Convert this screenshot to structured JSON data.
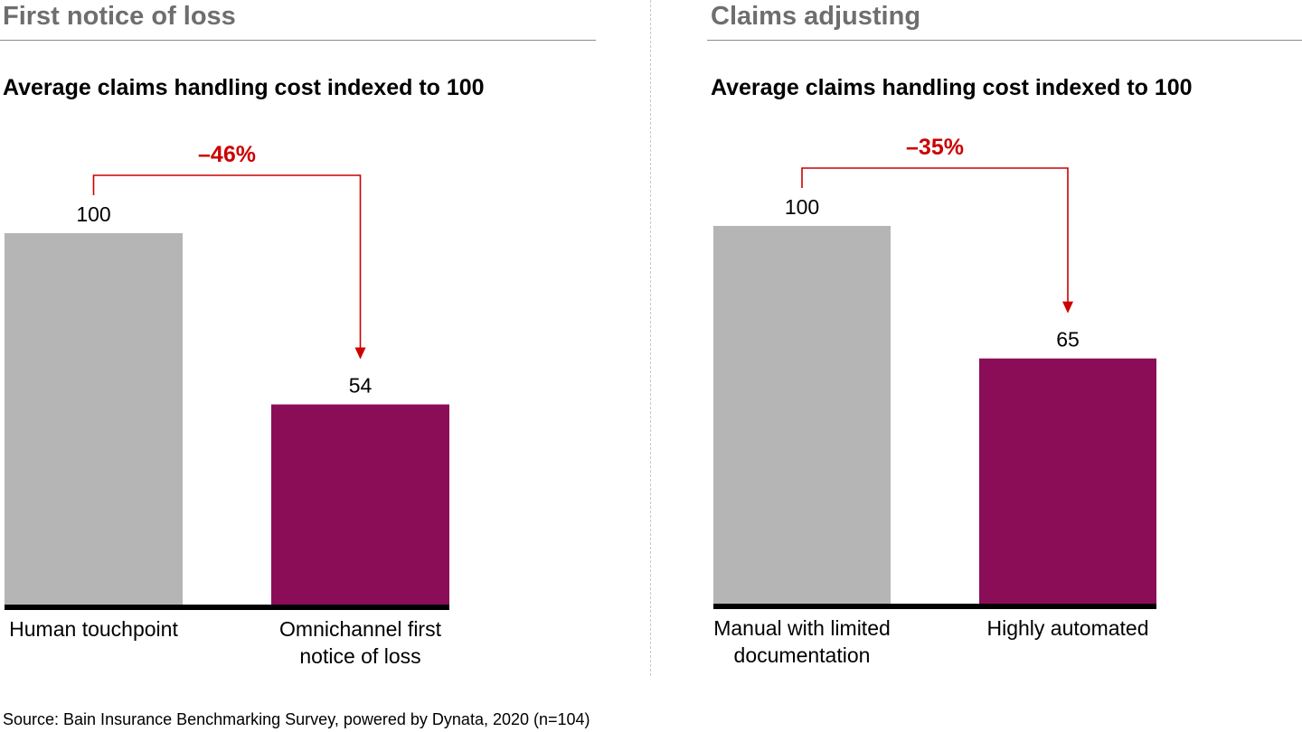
{
  "source": "Source: Bain Insurance Benchmarking Survey, powered by Dynata, 2020 (n=104)",
  "colors": {
    "baseline_bar": "#b5b5b5",
    "highlight_bar": "#8b0d57",
    "change_annotation": "#cc0000",
    "axis": "#000000",
    "title": "#6e6e6e"
  },
  "chart_data": [
    {
      "type": "bar",
      "title": "First notice of loss",
      "subtitle": "Average claims handling cost indexed to 100",
      "categories": [
        "Human touchpoint",
        "Omnichannel first notice of loss"
      ],
      "category_lines": [
        [
          "Human touchpoint"
        ],
        [
          "Omnichannel first",
          "notice of loss"
        ]
      ],
      "values": [
        100,
        54
      ],
      "data_labels": [
        "100",
        "54"
      ],
      "change_label": "–46%",
      "ylim": [
        0,
        100
      ],
      "grid": false,
      "legend": "none"
    },
    {
      "type": "bar",
      "title": "Claims adjusting",
      "subtitle": "Average claims handling cost indexed to 100",
      "categories": [
        "Manual with limited documentation",
        "Highly automated"
      ],
      "category_lines": [
        [
          "Manual with limited",
          "documentation"
        ],
        [
          "Highly automated"
        ]
      ],
      "values": [
        100,
        65
      ],
      "data_labels": [
        "100",
        "65"
      ],
      "change_label": "–35%",
      "ylim": [
        0,
        100
      ],
      "grid": false,
      "legend": "none"
    }
  ]
}
